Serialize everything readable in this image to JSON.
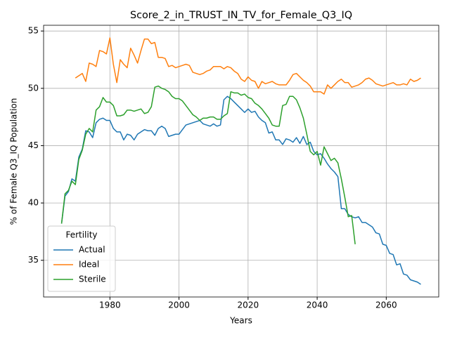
{
  "chart_data": {
    "type": "line",
    "title": "Score_2_in_TRUST_IN_TV_for_Female_Q3_IQ",
    "xlabel": "Years",
    "ylabel": "% of Female Q3_IQ Population",
    "legend_title": "Fertility",
    "legend_loc": "lower left",
    "grid": true,
    "xlim": [
      1960.8,
      2075.2
    ],
    "ylim": [
      31.8,
      55.5
    ],
    "xticks": [
      1980,
      2000,
      2020,
      2040,
      2060
    ],
    "yticks": [
      35,
      40,
      45,
      50,
      55
    ],
    "x": [
      1966,
      1967,
      1968,
      1969,
      1970,
      1971,
      1972,
      1973,
      1974,
      1975,
      1976,
      1977,
      1978,
      1979,
      1980,
      1981,
      1982,
      1983,
      1984,
      1985,
      1986,
      1987,
      1988,
      1989,
      1990,
      1991,
      1992,
      1993,
      1994,
      1995,
      1996,
      1997,
      1998,
      1999,
      2000,
      2001,
      2002,
      2003,
      2004,
      2005,
      2006,
      2007,
      2008,
      2009,
      2010,
      2011,
      2012,
      2013,
      2014,
      2015,
      2016,
      2017,
      2018,
      2019,
      2020,
      2021,
      2022,
      2023,
      2024,
      2025,
      2026,
      2027,
      2028,
      2029,
      2030,
      2031,
      2032,
      2033,
      2034,
      2035,
      2036,
      2037,
      2038,
      2039,
      2040,
      2041,
      2042,
      2043,
      2044,
      2045,
      2046,
      2047,
      2048,
      2049,
      2050,
      2051,
      2052,
      2053,
      2054,
      2055,
      2056,
      2057,
      2058,
      2059,
      2060,
      2061,
      2062,
      2063,
      2064,
      2065,
      2066,
      2067,
      2068,
      2069,
      2070
    ],
    "series": [
      {
        "name": "Actual",
        "color": "#1f77b4",
        "values": [
          38.2,
          40.6,
          41.0,
          42.1,
          41.9,
          44.0,
          44.7,
          46.3,
          46.2,
          45.7,
          47.0,
          47.3,
          47.4,
          47.2,
          47.2,
          46.5,
          46.2,
          46.2,
          45.5,
          46.0,
          45.9,
          45.5,
          46.0,
          46.2,
          46.4,
          46.3,
          46.3,
          45.9,
          46.5,
          46.7,
          46.5,
          45.8,
          45.9,
          46.0,
          46.0,
          46.4,
          46.8,
          46.9,
          47.0,
          47.1,
          47.2,
          46.9,
          46.8,
          46.7,
          46.9,
          46.7,
          46.8,
          49.0,
          49.3,
          49.1,
          48.8,
          48.5,
          48.2,
          47.9,
          48.2,
          47.9,
          48.0,
          47.5,
          47.2,
          47.0,
          46.1,
          46.2,
          45.5,
          45.5,
          45.1,
          45.6,
          45.5,
          45.3,
          45.7,
          45.2,
          45.8,
          45.1,
          45.3,
          44.5,
          44.2,
          44.3,
          43.9,
          43.4,
          43.0,
          42.7,
          42.3,
          39.5,
          39.5,
          39.0,
          38.8,
          38.7,
          38.8,
          38.3,
          38.3,
          38.1,
          37.9,
          37.4,
          37.3,
          36.4,
          36.3,
          35.6,
          35.5,
          34.6,
          34.7,
          33.8,
          33.7,
          33.3,
          33.2,
          33.1,
          32.9
        ]
      },
      {
        "name": "Ideal",
        "color": "#ff7f0e",
        "values": [
          null,
          null,
          null,
          null,
          50.9,
          51.1,
          51.3,
          50.6,
          52.2,
          52.1,
          51.9,
          53.3,
          53.2,
          53.0,
          54.4,
          52.1,
          50.5,
          52.5,
          52.1,
          51.8,
          53.5,
          52.9,
          52.2,
          53.3,
          54.3,
          54.3,
          53.9,
          54.0,
          52.7,
          52.7,
          52.6,
          51.9,
          52.0,
          51.8,
          51.9,
          52.0,
          52.1,
          52.0,
          51.4,
          51.3,
          51.2,
          51.3,
          51.5,
          51.6,
          51.9,
          51.9,
          51.9,
          51.7,
          51.9,
          51.8,
          51.5,
          51.3,
          50.8,
          50.6,
          51.0,
          50.7,
          50.6,
          50.0,
          50.6,
          50.4,
          50.5,
          50.6,
          50.4,
          50.3,
          50.3,
          50.3,
          50.7,
          51.2,
          51.3,
          51.0,
          50.7,
          50.5,
          50.2,
          49.7,
          49.7,
          49.7,
          49.5,
          50.3,
          50.0,
          50.3,
          50.6,
          50.8,
          50.5,
          50.5,
          50.1,
          50.2,
          50.3,
          50.5,
          50.8,
          50.9,
          50.7,
          50.4,
          50.3,
          50.2,
          50.3,
          50.4,
          50.5,
          50.3,
          50.3,
          50.4,
          50.3,
          50.8,
          50.6,
          50.7,
          50.9
        ]
      },
      {
        "name": "Sterile",
        "color": "#2ca02c",
        "values": [
          38.2,
          40.8,
          41.1,
          41.9,
          41.6,
          43.8,
          44.6,
          46.0,
          46.5,
          46.2,
          48.1,
          48.4,
          49.2,
          48.8,
          48.8,
          48.5,
          47.6,
          47.6,
          47.7,
          48.1,
          48.1,
          48.0,
          48.1,
          48.2,
          47.8,
          47.9,
          48.4,
          50.1,
          50.2,
          50.0,
          49.9,
          49.7,
          49.3,
          49.1,
          49.1,
          48.9,
          48.5,
          48.1,
          47.7,
          47.5,
          47.2,
          47.4,
          47.4,
          47.5,
          47.5,
          47.3,
          47.3,
          47.6,
          47.8,
          49.7,
          49.6,
          49.6,
          49.4,
          49.5,
          49.2,
          49.1,
          48.7,
          48.5,
          48.2,
          47.8,
          47.4,
          46.8,
          46.7,
          46.7,
          48.5,
          48.6,
          49.3,
          49.3,
          49.0,
          48.3,
          47.4,
          46.0,
          44.5,
          44.2,
          44.5,
          43.3,
          44.9,
          44.3,
          43.7,
          43.9,
          43.5,
          42.1,
          40.5,
          38.8,
          38.9,
          36.4,
          null,
          null,
          null,
          null,
          null,
          null,
          null,
          null,
          null,
          null,
          null,
          null,
          null,
          null,
          null,
          null,
          null,
          null,
          null
        ]
      }
    ]
  }
}
